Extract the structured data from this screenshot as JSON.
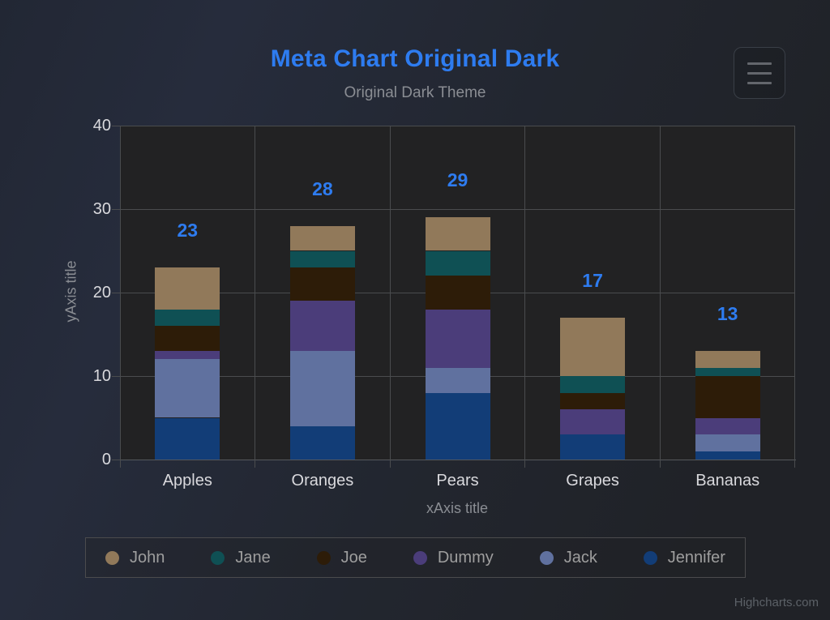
{
  "header": {
    "title": "Meta Chart Original Dark",
    "subtitle": "Original Dark Theme"
  },
  "menu_button": {
    "icon": "hamburger-icon"
  },
  "theme": {
    "accent_blue": "#2e7cf0",
    "plot_background": "#222223",
    "grid_color": "#4a4c4e",
    "axis_text_color": "#d9d9dd",
    "muted_text_color": "#8a8d93",
    "legend_text_color": "#9e9e9e",
    "credits_text_color": "#5c6167"
  },
  "chart_data": {
    "type": "bar",
    "stacked": true,
    "title": "Meta Chart Original Dark",
    "subtitle": "Original Dark Theme",
    "categories": [
      "Apples",
      "Oranges",
      "Pears",
      "Grapes",
      "Bananas"
    ],
    "series": [
      {
        "name": "John",
        "color": "#91795a",
        "values": [
          5,
          3,
          4,
          7,
          2
        ]
      },
      {
        "name": "Jane",
        "color": "#0f5054",
        "values": [
          2,
          2,
          3,
          2,
          1
        ]
      },
      {
        "name": "Joe",
        "color": "#2d1c08",
        "values": [
          3,
          4,
          4,
          2,
          5
        ]
      },
      {
        "name": "Dummy",
        "color": "#4b3d7a",
        "values": [
          1,
          6,
          7,
          3,
          2
        ]
      },
      {
        "name": "Jack",
        "color": "#60719f",
        "values": [
          7,
          9,
          3,
          0,
          2
        ]
      },
      {
        "name": "Jennifer",
        "color": "#123d77",
        "values": [
          5,
          4,
          8,
          3,
          1
        ]
      }
    ],
    "stack_order_bottom_to_top": [
      "Jennifer",
      "Jack",
      "Dummy",
      "Joe",
      "Jane",
      "John"
    ],
    "stack_totals": [
      23,
      28,
      29,
      17,
      13
    ],
    "xlabel": "xAxis title",
    "ylabel": "yAxis title",
    "ylim": [
      0,
      40
    ],
    "yticks": [
      0,
      10,
      20,
      30,
      40
    ],
    "grid": true,
    "legend_position": "bottom",
    "stack_label_color": "#2e7cf0"
  },
  "credits": {
    "label": "Highcharts.com"
  }
}
